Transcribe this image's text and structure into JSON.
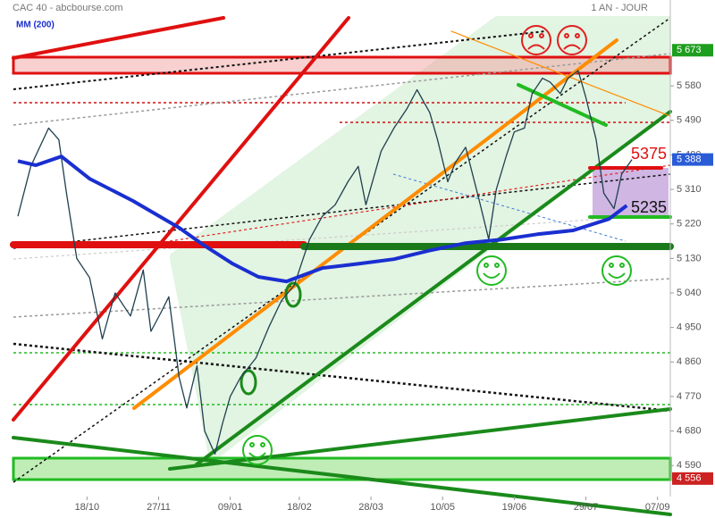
{
  "chart_data": {
    "type": "line",
    "title": "CAC 40 - abcbourse.com",
    "subtitle": "1 AN - JOUR",
    "xlim": [
      0,
      262
    ],
    "xticks": [
      {
        "value": 34,
        "label": "18/10"
      },
      {
        "value": 62,
        "label": "27/11"
      },
      {
        "value": 90,
        "label": "09/01"
      },
      {
        "value": 117,
        "label": "18/02"
      },
      {
        "value": 145,
        "label": "28/03"
      },
      {
        "value": 173,
        "label": "10/05"
      },
      {
        "value": 201,
        "label": "19/06"
      },
      {
        "value": 229,
        "label": "29/07"
      },
      {
        "value": 257,
        "label": "07/09"
      }
    ],
    "ylim": [
      4509,
      5804
    ],
    "yticks": [
      {
        "value": 4590,
        "label": "4 590"
      },
      {
        "value": 4680,
        "label": "4 680"
      },
      {
        "value": 4770,
        "label": "4 770"
      },
      {
        "value": 4860,
        "label": "4 860"
      },
      {
        "value": 4950,
        "label": "4 950"
      },
      {
        "value": 5040,
        "label": "5 040"
      },
      {
        "value": 5130,
        "label": "5 130"
      },
      {
        "value": 5220,
        "label": "5 220"
      },
      {
        "value": 5310,
        "label": "5 310"
      },
      {
        "value": 5400,
        "label": "5 400"
      },
      {
        "value": 5490,
        "label": "5 490"
      },
      {
        "value": 5580,
        "label": "5 580"
      }
    ],
    "series": [
      {
        "color": "#1f3f4f",
        "x": [
          7,
          12,
          19,
          23,
          26,
          30,
          35,
          40,
          45,
          51,
          56,
          59,
          63,
          66,
          70,
          73,
          77,
          80,
          84,
          87,
          90,
          94,
          100,
          105,
          110,
          115,
          121,
          126,
          131,
          136,
          140,
          143,
          149,
          154,
          159,
          163,
          168,
          171,
          175,
          178,
          182,
          187,
          191,
          194,
          198,
          201,
          205,
          208,
          212,
          215,
          219,
          222,
          226,
          229,
          233,
          236,
          240,
          243,
          247
        ],
        "values": [
          5240,
          5370,
          5470,
          5440,
          5300,
          5130,
          5080,
          4920,
          5040,
          4980,
          5100,
          4940,
          4990,
          5030,
          4820,
          4740,
          4850,
          4680,
          4620,
          4700,
          4770,
          4820,
          4870,
          4950,
          5020,
          5060,
          5180,
          5240,
          5270,
          5330,
          5370,
          5270,
          5410,
          5470,
          5520,
          5570,
          5510,
          5440,
          5330,
          5380,
          5420,
          5290,
          5180,
          5310,
          5400,
          5460,
          5470,
          5560,
          5600,
          5590,
          5560,
          5600,
          5620,
          5550,
          5440,
          5300,
          5260,
          5350,
          5388
        ]
      },
      {
        "name": "MM (200)",
        "color": "#1a2fd0",
        "x": [
          7,
          14,
          24,
          35,
          52,
          70,
          80,
          91,
          101,
          112,
          126,
          140,
          154,
          168,
          182,
          196,
          210,
          224,
          238,
          245
        ],
        "values": [
          5384,
          5373,
          5396,
          5338,
          5280,
          5210,
          5163,
          5116,
          5082,
          5070,
          5105,
          5116,
          5128,
          5151,
          5170,
          5179,
          5193,
          5203,
          5233,
          5268
        ]
      }
    ],
    "price_badges": [
      {
        "value": 5673,
        "label": "5 673",
        "color": "#1e9e1e"
      },
      {
        "value": 5388,
        "label": "5 388",
        "color": "#2a5bd7"
      },
      {
        "value": 4556,
        "label": "4 556",
        "color": "#cc2222"
      }
    ],
    "levels": [
      {
        "value": 5375,
        "color": "#e01010"
      },
      {
        "value": 5235,
        "color": "#111111"
      }
    ]
  }
}
